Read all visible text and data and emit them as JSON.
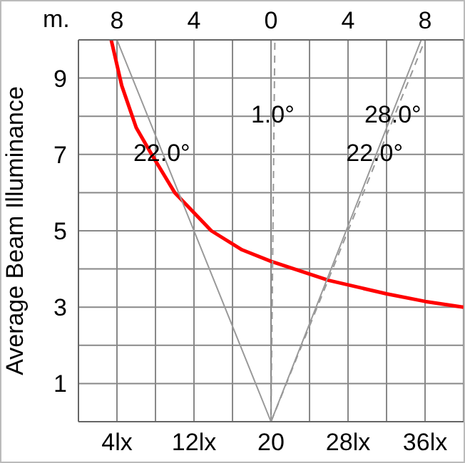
{
  "chart_data": {
    "type": "line",
    "ylabel": "Average Beam Illuminance",
    "x2label": "m.",
    "xlim": [
      0,
      40
    ],
    "xticks": [
      {
        "value": 0,
        "label": null
      },
      {
        "value": 4,
        "label": "4lx"
      },
      {
        "value": 8,
        "label": null
      },
      {
        "value": 12,
        "label": "12lx"
      },
      {
        "value": 16,
        "label": null
      },
      20,
      {
        "value": 24,
        "label": null
      },
      {
        "value": 28,
        "label": "28lx"
      },
      {
        "value": 32,
        "label": null
      },
      {
        "value": 36,
        "label": "36lx"
      },
      {
        "value": 40,
        "label": null
      }
    ],
    "x2lim": [
      -10,
      10
    ],
    "x2ticks": [
      {
        "value": -8,
        "label": "8"
      },
      {
        "value": -4,
        "label": "4"
      },
      0,
      4,
      8
    ],
    "ylim": [
      0,
      10
    ],
    "yticks": [
      {
        "value": 0,
        "label": null
      },
      1,
      {
        "value": 2,
        "label": null
      },
      3,
      {
        "value": 4,
        "label": null
      },
      5,
      {
        "value": 6,
        "label": null
      },
      7,
      {
        "value": 8,
        "label": null
      },
      9,
      {
        "value": 10,
        "label": null
      }
    ],
    "grid": true,
    "series": [
      {
        "color": "#ff0000",
        "x": [
          3.4,
          4.5,
          6,
          7.6,
          10,
          13.8,
          17,
          20,
          26,
          32,
          36,
          40
        ],
        "values": [
          10,
          8.8,
          7.7,
          7,
          6,
          5,
          4.5,
          4.2,
          3.7,
          3.35,
          3.15,
          3
        ]
      },
      {
        "color": "#999999",
        "axis": "x2",
        "x": [
          -8,
          0,
          7.8
        ],
        "values": [
          10,
          0,
          10
        ]
      },
      {
        "color": "#999999",
        "axis": "x2",
        "line_style": "dashed",
        "x": [
          0,
          8
        ],
        "values": [
          0,
          10
        ]
      },
      {
        "color": "#999999",
        "axis": "x2",
        "line_style": "dashed",
        "x": [
          0,
          0.2
        ],
        "values": [
          0,
          10
        ]
      }
    ],
    "annotations": [
      {
        "text": "22.0°",
        "x": 8.8,
        "y": 7
      },
      {
        "text": "1.0°",
        "x": 20.32,
        "y": 8
      },
      {
        "text": "28.0°",
        "x": 32.8,
        "y": 8
      },
      {
        "text": "22.0°",
        "x": 30.9,
        "y": 7
      }
    ]
  }
}
